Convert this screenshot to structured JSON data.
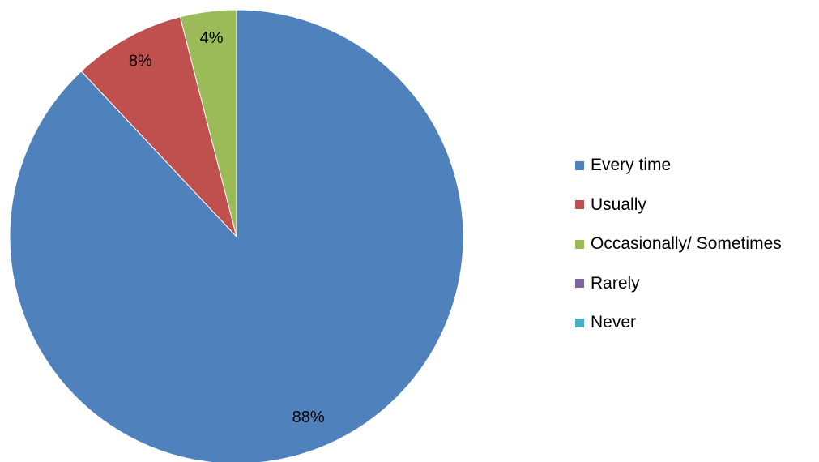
{
  "chart_data": {
    "type": "pie",
    "title": "",
    "slices": [
      {
        "label": "Every time",
        "value": 88,
        "display": "88%",
        "color": "#4F81BD"
      },
      {
        "label": "Usually",
        "value": 8,
        "display": "8%",
        "color": "#C0504D"
      },
      {
        "label": "Occasionally/ Sometimes",
        "value": 4,
        "display": "4%",
        "color": "#9BBB59"
      },
      {
        "label": "Rarely",
        "value": 0,
        "display": "",
        "color": "#8064A2"
      },
      {
        "label": "Never",
        "value": 0,
        "display": "",
        "color": "#4BACC6"
      }
    ],
    "start_angle": "12 o'clock",
    "direction": "clockwise",
    "legend_position": "right"
  }
}
